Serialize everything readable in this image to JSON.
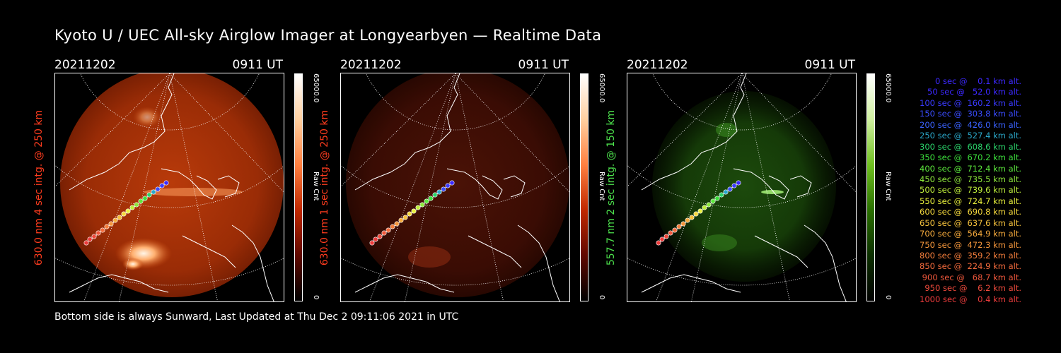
{
  "title": "Kyoto U / UEC All-sky Airglow Imager at Longyearbyen — Realtime Data",
  "footer": "Bottom side is always Sunward, Last Updated at Thu Dec  2 09:11:06 2021 in UTC",
  "panels": [
    {
      "date": "20211202",
      "time": "0911 UT",
      "side_label": "630.0 nm 4 sec intg. @ 250 km",
      "side_color": "#ff3c1e",
      "cbar_max": "65000.0",
      "cbar_min": "0",
      "cbar_unit": "Raw Cnt",
      "colormap": "red",
      "intensity": "bright"
    },
    {
      "date": "20211202",
      "time": "0911 UT",
      "side_label": "630.0 nm 1 sec intg. @ 250 km",
      "side_color": "#ff3c1e",
      "cbar_max": "65000.0",
      "cbar_min": "0",
      "cbar_unit": "Raw Cnt",
      "colormap": "red",
      "intensity": "dim"
    },
    {
      "date": "20211202",
      "time": "0911 UT",
      "side_label": "557.7 nm 2 sec intg. @ 150 km",
      "side_color": "#4ce04c",
      "cbar_max": "65000.0",
      "cbar_min": "0",
      "cbar_unit": "Raw Cnt",
      "colormap": "green",
      "intensity": "dim"
    }
  ],
  "legend": [
    {
      "text": "   0 sec @    0.1 km alt.",
      "color": "#3c28ff"
    },
    {
      "text": "  50 sec @   52.0 km alt.",
      "color": "#3c28ff"
    },
    {
      "text": " 100 sec @  160.2 km alt.",
      "color": "#3a3aff"
    },
    {
      "text": " 150 sec @  303.8 km alt.",
      "color": "#3a4cff"
    },
    {
      "text": " 200 sec @  426.0 km alt.",
      "color": "#3a62ff"
    },
    {
      "text": " 250 sec @  527.4 km alt.",
      "color": "#2aa6c8"
    },
    {
      "text": " 300 sec @  608.6 km alt.",
      "color": "#2ad26a"
    },
    {
      "text": " 350 sec @  670.2 km alt.",
      "color": "#3ce03c"
    },
    {
      "text": " 400 sec @  712.4 km alt.",
      "color": "#5ce83c"
    },
    {
      "text": " 450 sec @  735.5 km alt.",
      "color": "#8ee83c"
    },
    {
      "text": " 500 sec @  739.6 km alt.",
      "color": "#bfef3c"
    },
    {
      "text": " 550 sec @  724.7 km alt.",
      "color": "#e8f03c"
    },
    {
      "text": " 600 sec @  690.8 km alt.",
      "color": "#f4d83c"
    },
    {
      "text": " 650 sec @  637.6 km alt.",
      "color": "#f6c23c"
    },
    {
      "text": " 700 sec @  564.9 km alt.",
      "color": "#f6aa3c"
    },
    {
      "text": " 750 sec @  472.3 km alt.",
      "color": "#f4963c"
    },
    {
      "text": " 800 sec @  359.2 km alt.",
      "color": "#f47e3c"
    },
    {
      "text": " 850 sec @  224.9 km alt.",
      "color": "#f26a3c"
    },
    {
      "text": " 900 sec @   68.7 km alt.",
      "color": "#f0583c"
    },
    {
      "text": " 950 sec @    6.2 km alt.",
      "color": "#ee4a3c"
    },
    {
      "text": "1000 sec @    0.4 km alt.",
      "color": "#ec3c3c"
    }
  ]
}
